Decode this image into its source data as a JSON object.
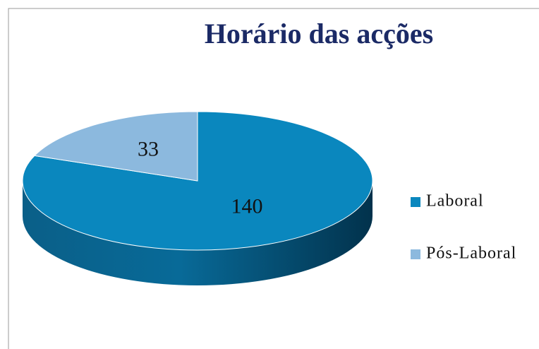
{
  "chart_data": {
    "type": "pie",
    "title": "Horário das acções",
    "categories": [
      "Laboral",
      "Pós-Laboral"
    ],
    "values": [
      140,
      33
    ],
    "colors": [
      "#0a87be",
      "#8cb9de"
    ],
    "legend": "right"
  }
}
